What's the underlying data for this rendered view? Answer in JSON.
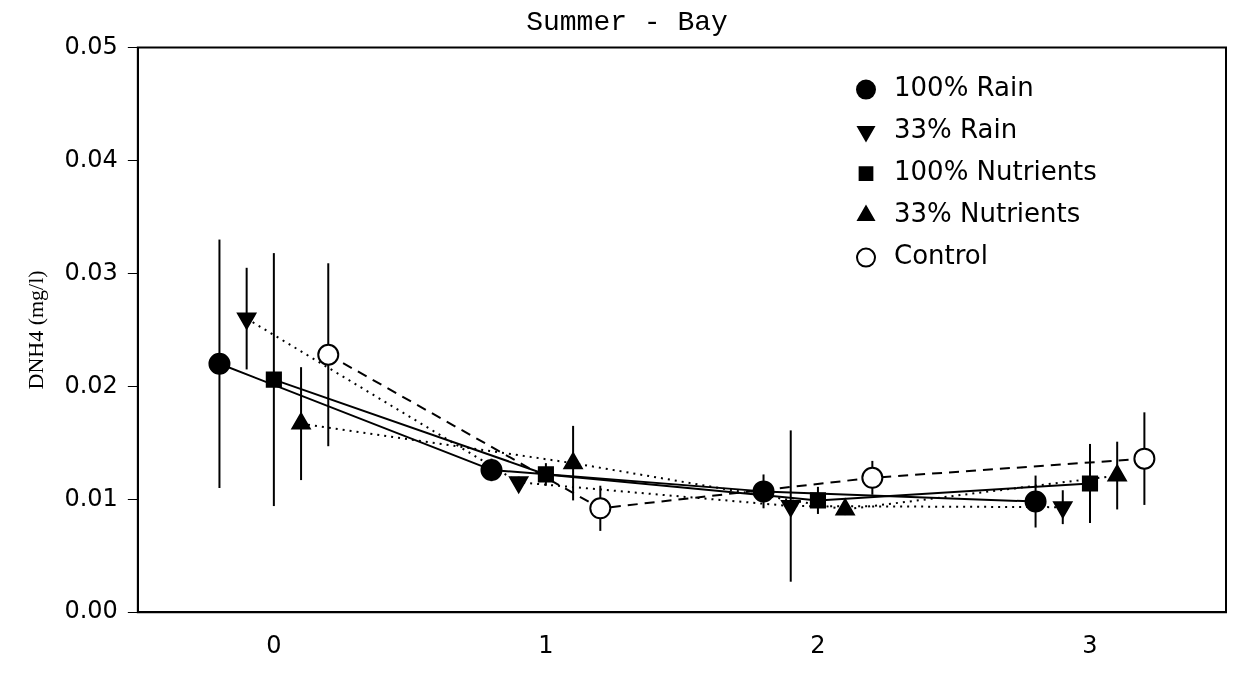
{
  "chart_data": {
    "type": "line",
    "title": "Summer - Bay",
    "ylabel": "DNH4 (mg/l)",
    "xlim": [
      -0.5,
      3.5
    ],
    "xticks": [
      0,
      1,
      2,
      3
    ],
    "ylim": [
      0,
      0.05
    ],
    "yticks": [
      {
        "value": 0,
        "label": "0.00"
      },
      {
        "value": 0.01,
        "label": "0.01"
      },
      {
        "value": 0.02,
        "label": "0.02"
      },
      {
        "value": 0.03,
        "label": "0.03"
      },
      {
        "value": 0.04,
        "label": "0.04"
      },
      {
        "value": 0.05,
        "label": "0.05"
      }
    ],
    "grid": false,
    "legend": "top right",
    "series": [
      {
        "name": "100% Rain",
        "color": "#000000",
        "marker": "circle",
        "line_style": "solid",
        "x": [
          -0.2,
          0.8,
          1.8,
          2.8
        ],
        "values": [
          0.022,
          0.0126,
          0.0107,
          0.0098
        ],
        "errors": [
          0.011,
          0.001,
          0.0015,
          0.0023
        ]
      },
      {
        "name": "33% Rain",
        "color": "#000000",
        "marker": "triangle-down",
        "line_style": "dotted",
        "x": [
          -0.1,
          0.9,
          1.9,
          2.9
        ],
        "values": [
          0.026,
          0.0115,
          0.0094,
          0.0093
        ],
        "errors": [
          0.0045,
          0.0005,
          0.0067,
          0.0015
        ]
      },
      {
        "name": "100% Nutrients",
        "color": "#000000",
        "marker": "square",
        "line_style": "solid",
        "x": [
          0,
          1,
          2,
          3
        ],
        "values": [
          0.0206,
          0.0122,
          0.0099,
          0.0114
        ],
        "errors": [
          0.0112,
          0.001,
          0.0012,
          0.0035
        ]
      },
      {
        "name": "33% Nutrients",
        "color": "#000000",
        "marker": "triangle",
        "line_style": "dotted",
        "x": [
          0.1,
          1.1,
          2.1,
          3.1
        ],
        "values": [
          0.0167,
          0.0132,
          0.0091,
          0.0121
        ],
        "errors": [
          0.005,
          0.0033,
          0.0005,
          0.003
        ]
      },
      {
        "name": "Control",
        "color": "#000000",
        "marker": "circle-open",
        "line_style": "dashed",
        "x": [
          0.2,
          1.2,
          2.2,
          3.2
        ],
        "values": [
          0.0228,
          0.0092,
          0.0119,
          0.0136
        ],
        "errors": [
          0.0081,
          0.002,
          0.0015,
          0.0041
        ]
      }
    ]
  }
}
